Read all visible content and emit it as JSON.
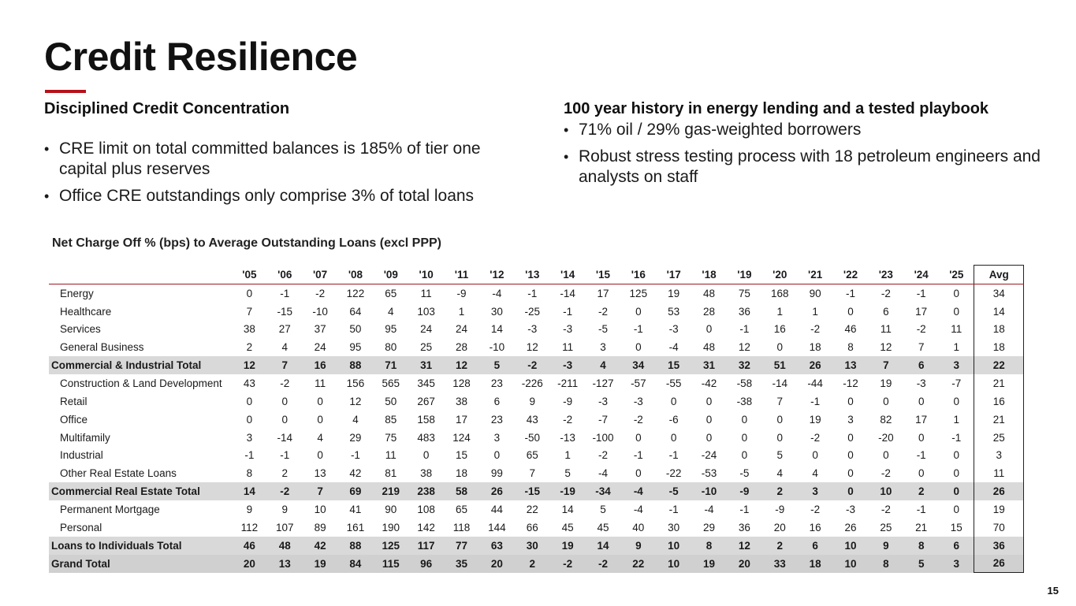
{
  "slide": {
    "title": "Credit Resilience",
    "page_number": "15",
    "accent_color": "#b5121b"
  },
  "left": {
    "heading": "Disciplined Credit Concentration",
    "bullets": [
      "CRE limit on total committed balances is 185% of tier one capital plus reserves",
      "Office CRE outstandings only comprise 3% of total loans"
    ]
  },
  "right": {
    "heading": "100 year history in energy lending and a tested playbook",
    "bullets": [
      "71% oil / 29% gas-weighted borrowers",
      "Robust stress testing process with 18 petroleum engineers and analysts on staff"
    ]
  },
  "bullet_glyph": "•",
  "table": {
    "title": "Net Charge Off % (bps) to Average Outstanding Loans (excl PPP)",
    "columns": [
      "'05",
      "'06",
      "'07",
      "'08",
      "'09",
      "'10",
      "'11",
      "'12",
      "'13",
      "'14",
      "'15",
      "'16",
      "'17",
      "'18",
      "'19",
      "'20",
      "'21",
      "'22",
      "'23",
      "'24",
      "'25",
      "Avg"
    ],
    "rows": [
      {
        "label": "Energy",
        "total": false,
        "values": [
          "0",
          "-1",
          "-2",
          "122",
          "65",
          "11",
          "-9",
          "-4",
          "-1",
          "-14",
          "17",
          "125",
          "19",
          "48",
          "75",
          "168",
          "90",
          "-1",
          "-2",
          "-1",
          "0",
          "34"
        ]
      },
      {
        "label": "Healthcare",
        "total": false,
        "values": [
          "7",
          "-15",
          "-10",
          "64",
          "4",
          "103",
          "1",
          "30",
          "-25",
          "-1",
          "-2",
          "0",
          "53",
          "28",
          "36",
          "1",
          "1",
          "0",
          "6",
          "17",
          "0",
          "14"
        ]
      },
      {
        "label": "Services",
        "total": false,
        "values": [
          "38",
          "27",
          "37",
          "50",
          "95",
          "24",
          "24",
          "14",
          "-3",
          "-3",
          "-5",
          "-1",
          "-3",
          "0",
          "-1",
          "16",
          "-2",
          "46",
          "11",
          "-2",
          "11",
          "18"
        ]
      },
      {
        "label": "General Business",
        "total": false,
        "values": [
          "2",
          "4",
          "24",
          "95",
          "80",
          "25",
          "28",
          "-10",
          "12",
          "11",
          "3",
          "0",
          "-4",
          "48",
          "12",
          "0",
          "18",
          "8",
          "12",
          "7",
          "1",
          "18"
        ]
      },
      {
        "label": "Commercial & Industrial Total",
        "total": true,
        "values": [
          "12",
          "7",
          "16",
          "88",
          "71",
          "31",
          "12",
          "5",
          "-2",
          "-3",
          "4",
          "34",
          "15",
          "31",
          "32",
          "51",
          "26",
          "13",
          "7",
          "6",
          "3",
          "22"
        ]
      },
      {
        "label": "Construction & Land Development",
        "total": false,
        "values": [
          "43",
          "-2",
          "11",
          "156",
          "565",
          "345",
          "128",
          "23",
          "-226",
          "-211",
          "-127",
          "-57",
          "-55",
          "-42",
          "-58",
          "-14",
          "-44",
          "-12",
          "19",
          "-3",
          "-7",
          "21"
        ]
      },
      {
        "label": "Retail",
        "total": false,
        "values": [
          "0",
          "0",
          "0",
          "12",
          "50",
          "267",
          "38",
          "6",
          "9",
          "-9",
          "-3",
          "-3",
          "0",
          "0",
          "-38",
          "7",
          "-1",
          "0",
          "0",
          "0",
          "0",
          "16"
        ]
      },
      {
        "label": "Office",
        "total": false,
        "values": [
          "0",
          "0",
          "0",
          "4",
          "85",
          "158",
          "17",
          "23",
          "43",
          "-2",
          "-7",
          "-2",
          "-6",
          "0",
          "0",
          "0",
          "19",
          "3",
          "82",
          "17",
          "1",
          "21"
        ]
      },
      {
        "label": "Multifamily",
        "total": false,
        "values": [
          "3",
          "-14",
          "4",
          "29",
          "75",
          "483",
          "124",
          "3",
          "-50",
          "-13",
          "-100",
          "0",
          "0",
          "0",
          "0",
          "0",
          "-2",
          "0",
          "-20",
          "0",
          "-1",
          "25"
        ]
      },
      {
        "label": "Industrial",
        "total": false,
        "values": [
          "-1",
          "-1",
          "0",
          "-1",
          "11",
          "0",
          "15",
          "0",
          "65",
          "1",
          "-2",
          "-1",
          "-1",
          "-24",
          "0",
          "5",
          "0",
          "0",
          "0",
          "-1",
          "0",
          "3"
        ]
      },
      {
        "label": "Other Real Estate Loans",
        "total": false,
        "values": [
          "8",
          "2",
          "13",
          "42",
          "81",
          "38",
          "18",
          "99",
          "7",
          "5",
          "-4",
          "0",
          "-22",
          "-53",
          "-5",
          "4",
          "4",
          "0",
          "-2",
          "0",
          "0",
          "11"
        ]
      },
      {
        "label": "Commercial Real Estate Total",
        "total": true,
        "values": [
          "14",
          "-2",
          "7",
          "69",
          "219",
          "238",
          "58",
          "26",
          "-15",
          "-19",
          "-34",
          "-4",
          "-5",
          "-10",
          "-9",
          "2",
          "3",
          "0",
          "10",
          "2",
          "0",
          "26"
        ]
      },
      {
        "label": "Permanent Mortgage",
        "total": false,
        "values": [
          "9",
          "9",
          "10",
          "41",
          "90",
          "108",
          "65",
          "44",
          "22",
          "14",
          "5",
          "-4",
          "-1",
          "-4",
          "-1",
          "-9",
          "-2",
          "-3",
          "-2",
          "-1",
          "0",
          "19"
        ]
      },
      {
        "label": "Personal",
        "total": false,
        "values": [
          "112",
          "107",
          "89",
          "161",
          "190",
          "142",
          "118",
          "144",
          "66",
          "45",
          "45",
          "40",
          "30",
          "29",
          "36",
          "20",
          "16",
          "26",
          "25",
          "21",
          "15",
          "70"
        ]
      },
      {
        "label": "Loans to Individuals Total",
        "total": true,
        "values": [
          "46",
          "48",
          "42",
          "88",
          "125",
          "117",
          "77",
          "63",
          "30",
          "19",
          "14",
          "9",
          "10",
          "8",
          "12",
          "2",
          "6",
          "10",
          "9",
          "8",
          "6",
          "36"
        ]
      },
      {
        "label": "Grand Total",
        "total": true,
        "grand": true,
        "values": [
          "20",
          "13",
          "19",
          "84",
          "115",
          "96",
          "35",
          "20",
          "2",
          "-2",
          "-2",
          "22",
          "10",
          "19",
          "20",
          "33",
          "18",
          "10",
          "8",
          "5",
          "3",
          "26"
        ]
      }
    ]
  }
}
